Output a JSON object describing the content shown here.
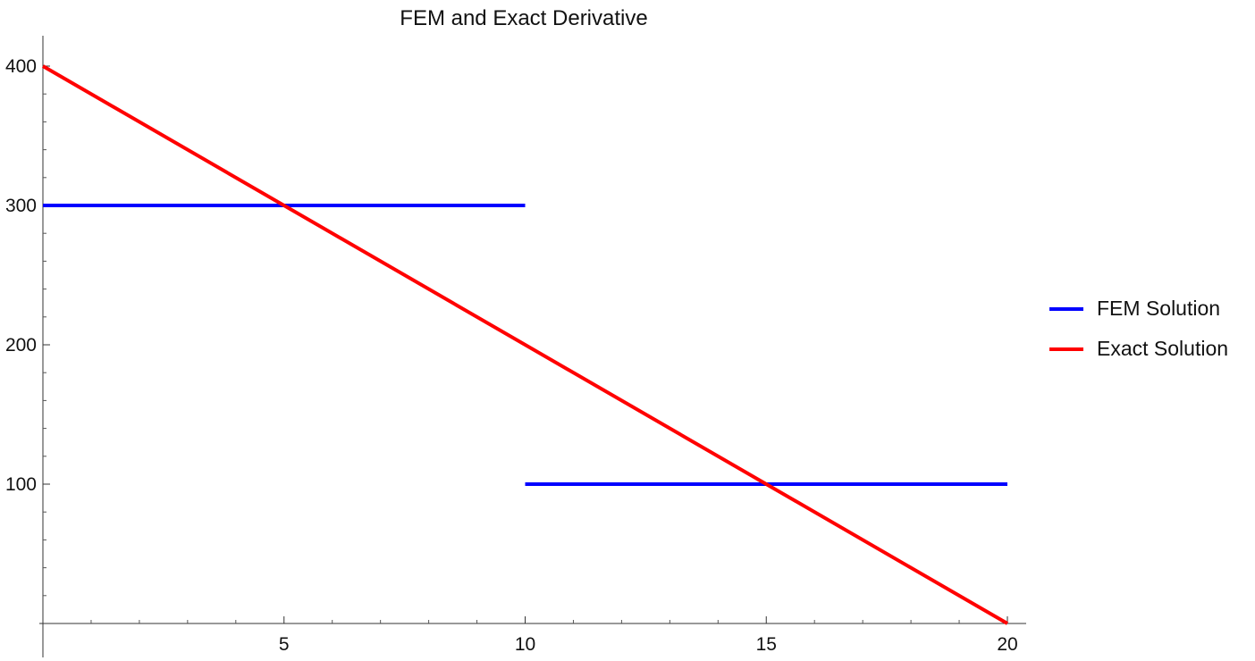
{
  "chart_data": {
    "type": "line",
    "title": "FEM and Exact Derivative",
    "xlabel": "",
    "ylabel": "",
    "xlim": [
      0,
      20
    ],
    "ylim": [
      0,
      400
    ],
    "x_ticks": [
      5,
      10,
      15,
      20
    ],
    "y_ticks": [
      100,
      200,
      300,
      400
    ],
    "grid": false,
    "legend_position": "right",
    "series": [
      {
        "name": "FEM Solution",
        "color": "#0000ff",
        "segments": [
          [
            [
              0,
              300
            ],
            [
              10,
              300
            ]
          ],
          [
            [
              10,
              100
            ],
            [
              20,
              100
            ]
          ]
        ]
      },
      {
        "name": "Exact Solution",
        "color": "#ff0000",
        "segments": [
          [
            [
              0,
              400
            ],
            [
              20,
              0
            ]
          ]
        ]
      }
    ]
  }
}
